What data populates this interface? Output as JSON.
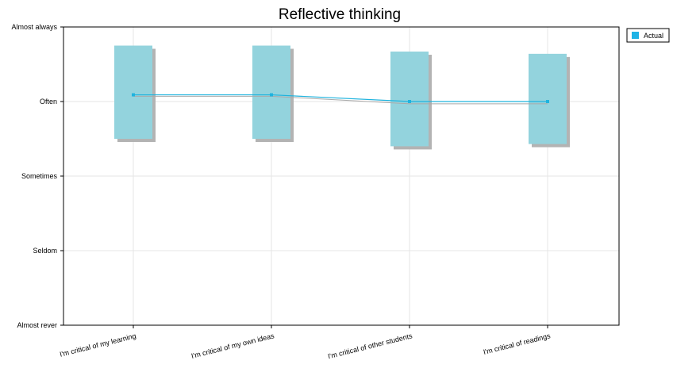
{
  "chart_data": {
    "type": "line",
    "title": "Reflective thinking",
    "categories": [
      "I'm critical of my learning",
      "I'm critical of my own ideas",
      "I'm critical of other students",
      "I'm critical of readings"
    ],
    "y_levels": [
      "Almost never",
      "Seldom",
      "Sometimes",
      "Often",
      "Almost always"
    ],
    "y_tick_labels": [
      "Almost rever",
      "Seldom",
      "Sometimes",
      "Often",
      "Almost always"
    ],
    "ylim": [
      1,
      5
    ],
    "series": [
      {
        "name": "Actual",
        "values": [
          4.09,
          4.09,
          4.0,
          4.0
        ],
        "range_low": [
          3.5,
          3.5,
          3.4,
          3.43
        ],
        "range_high": [
          4.75,
          4.75,
          4.67,
          4.64
        ]
      }
    ],
    "shadow_line_values": [
      4.07,
      4.07,
      3.97,
      3.97
    ],
    "legend_position": "top-right",
    "grid": true,
    "colors": {
      "box_fill": "#93d3dd",
      "box_shadow": "#b3b3b3",
      "line": "#1fb3de",
      "shadow_line": "#a9a9a9",
      "legend_swatch": "#1fb3e6",
      "grid": "#e6e6e6",
      "axis": "#000000"
    }
  }
}
